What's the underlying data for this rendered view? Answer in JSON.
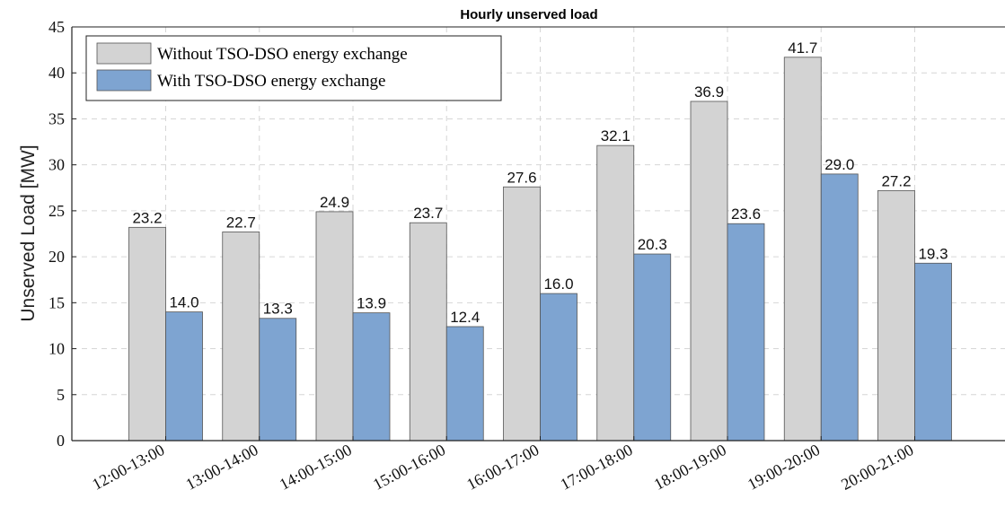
{
  "chart_data": {
    "type": "bar",
    "title": "Hourly unserved load",
    "xlabel": "",
    "ylabel": "Unserved Load [MW]",
    "ylim": [
      0,
      45
    ],
    "yticks": [
      0,
      5,
      10,
      15,
      20,
      25,
      30,
      35,
      40,
      45
    ],
    "grid": true,
    "legend_position": "top-left",
    "categories": [
      "12:00-13:00",
      "13:00-14:00",
      "14:00-15:00",
      "15:00-16:00",
      "16:00-17:00",
      "17:00-18:00",
      "18:00-19:00",
      "19:00-20:00",
      "20:00-21:00"
    ],
    "series": [
      {
        "name": "Without TSO-DSO energy exchange",
        "color": "#d3d3d3",
        "values": [
          23.2,
          22.7,
          24.9,
          23.7,
          27.6,
          32.1,
          36.9,
          41.7,
          27.2
        ],
        "labels": [
          "23.2",
          "22.7",
          "24.9",
          "23.7",
          "27.6",
          "32.1",
          "36.9",
          "41.7",
          "27.2"
        ]
      },
      {
        "name": "With TSO-DSO energy exchange",
        "color": "#7ea4d1",
        "values": [
          14.0,
          13.3,
          13.9,
          12.4,
          16.0,
          20.3,
          23.6,
          29.0,
          19.3
        ],
        "labels": [
          "14.0",
          "13.3",
          "13.9",
          "12.4",
          "16.0",
          "20.3",
          "23.6",
          "29.0",
          "19.3"
        ]
      }
    ]
  }
}
